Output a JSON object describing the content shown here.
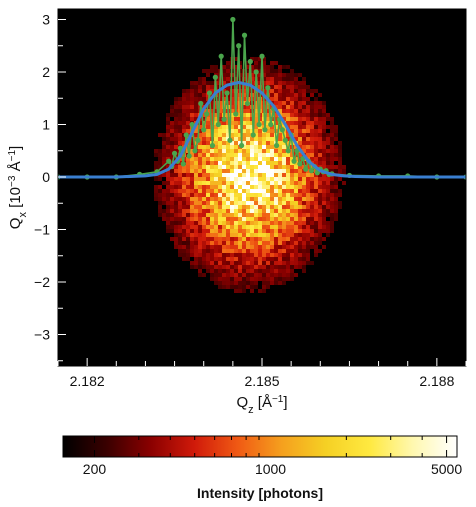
{
  "chart_data": {
    "type": "heatmap",
    "xlabel": "Q_z [Å^-1]",
    "ylabel": "Q_x [10^-3 Å^-1]",
    "xlim": [
      2.1815,
      2.1885
    ],
    "ylim": [
      -3.6,
      3.2
    ],
    "x_ticks": [
      2.182,
      2.185,
      2.188
    ],
    "x_tick_labels": [
      "2.182",
      "2.185",
      "2.188"
    ],
    "y_ticks": [
      -3,
      -2,
      -1,
      0,
      1,
      2,
      3
    ],
    "y_tick_labels": [
      "−3",
      "−2",
      "−1",
      "0",
      "1",
      "2",
      "3"
    ],
    "grid": false,
    "background_color": "#000000",
    "intensity_map": {
      "center": [
        2.18478,
        0.05
      ],
      "sigma": [
        0.0008,
        1.1
      ],
      "extent_qz": [
        2.1834,
        2.1864
      ],
      "extent_qx": [
        -1.8,
        1.8
      ],
      "peak_intensity_photons": 5000
    },
    "series": [
      {
        "color": "#4aa54c",
        "style": "line-markers",
        "x": [
          2.1815,
          2.182,
          2.1825,
          2.1829,
          2.1832,
          2.1834,
          2.18345,
          2.1835,
          2.18355,
          2.1836,
          2.18365,
          2.1837,
          2.18375,
          2.1838,
          2.18385,
          2.1839,
          2.18395,
          2.184,
          2.18405,
          2.1841,
          2.18415,
          2.1842,
          2.18425,
          2.1843,
          2.18435,
          2.1844,
          2.18445,
          2.1845,
          2.18455,
          2.1846,
          2.18465,
          2.1847,
          2.18475,
          2.1848,
          2.18485,
          2.1849,
          2.18495,
          2.185,
          2.18505,
          2.1851,
          2.18515,
          2.1852,
          2.18525,
          2.1853,
          2.18535,
          2.1854,
          2.18545,
          2.1855,
          2.18555,
          2.1856,
          2.18565,
          2.1857,
          2.18575,
          2.1858,
          2.18585,
          2.1859,
          2.18595,
          2.186,
          2.18605,
          2.1861,
          2.18615,
          2.1862,
          2.1865,
          2.187,
          2.1875,
          2.188,
          2.1885
        ],
        "values": [
          0.0,
          0.0,
          0.0,
          0.05,
          0.1,
          0.3,
          0.2,
          0.45,
          0.3,
          0.55,
          0.25,
          0.8,
          0.4,
          1.0,
          0.5,
          0.7,
          1.4,
          0.9,
          1.2,
          1.6,
          0.6,
          1.9,
          1.0,
          2.3,
          1.1,
          1.6,
          0.7,
          3.0,
          1.2,
          2.5,
          0.6,
          2.7,
          1.4,
          2.2,
          0.8,
          2.0,
          1.0,
          2.3,
          0.9,
          1.7,
          1.0,
          1.3,
          0.6,
          1.1,
          0.9,
          0.7,
          0.5,
          0.8,
          0.3,
          0.5,
          0.25,
          0.35,
          0.15,
          0.3,
          0.12,
          0.2,
          0.08,
          0.15,
          0.1,
          0.12,
          0.05,
          0.06,
          0.03,
          0.02,
          0.02,
          0.0,
          0.0
        ]
      },
      {
        "color": "#3a7fd0",
        "style": "line",
        "x": [
          2.1815,
          2.182,
          2.1825,
          2.183,
          2.1832,
          2.1834,
          2.1836,
          2.1838,
          2.184,
          2.1842,
          2.1844,
          2.1846,
          2.1848,
          2.185,
          2.1852,
          2.1854,
          2.1856,
          2.1858,
          2.186,
          2.1862,
          2.1864,
          2.1866,
          2.187,
          2.1875,
          2.188,
          2.1885
        ],
        "values": [
          0.0,
          0.0,
          0.0,
          0.02,
          0.05,
          0.15,
          0.4,
          0.85,
          1.3,
          1.6,
          1.75,
          1.8,
          1.75,
          1.6,
          1.35,
          1.0,
          0.6,
          0.3,
          0.12,
          0.05,
          0.02,
          0.01,
          0.0,
          0.0,
          0.0,
          0.0
        ]
      }
    ],
    "colorbar": {
      "title": "Intensity [photons]",
      "scale": "log",
      "range": [
        150,
        5500
      ],
      "tick_values": [
        200,
        1000,
        5000
      ],
      "tick_labels": [
        "200",
        "1000",
        "5000"
      ],
      "colormap": [
        "#000000",
        "#3a0000",
        "#8a0000",
        "#d01a0a",
        "#f05a14",
        "#f5a01e",
        "#f5d024",
        "#ffe940",
        "#fff8b0",
        "#ffffff"
      ]
    }
  }
}
